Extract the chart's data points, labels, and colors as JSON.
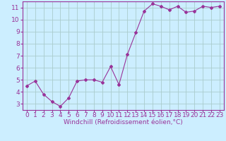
{
  "x": [
    0,
    1,
    2,
    3,
    4,
    5,
    6,
    7,
    8,
    9,
    10,
    11,
    12,
    13,
    14,
    15,
    16,
    17,
    18,
    19,
    20,
    21,
    22,
    23
  ],
  "y": [
    4.5,
    4.9,
    3.8,
    3.2,
    2.8,
    3.5,
    4.9,
    5.0,
    5.0,
    4.8,
    6.1,
    4.6,
    7.1,
    8.9,
    10.7,
    11.3,
    11.1,
    10.8,
    11.1,
    10.6,
    10.7,
    11.1,
    11.0,
    11.1
  ],
  "line_color": "#993399",
  "marker": "D",
  "marker_size": 2,
  "bg_color": "#cceeff",
  "grid_color": "#aacccc",
  "xlabel": "Windchill (Refroidissement éolien,°C)",
  "xlim": [
    -0.5,
    23.5
  ],
  "ylim": [
    2.5,
    11.5
  ],
  "yticks": [
    3,
    4,
    5,
    6,
    7,
    8,
    9,
    10,
    11
  ],
  "xticks": [
    0,
    1,
    2,
    3,
    4,
    5,
    6,
    7,
    8,
    9,
    10,
    11,
    12,
    13,
    14,
    15,
    16,
    17,
    18,
    19,
    20,
    21,
    22,
    23
  ],
  "xlabel_color": "#993399",
  "tick_color": "#993399",
  "label_fontsize": 6.5,
  "tick_fontsize": 6.5,
  "spine_color": "#993399"
}
